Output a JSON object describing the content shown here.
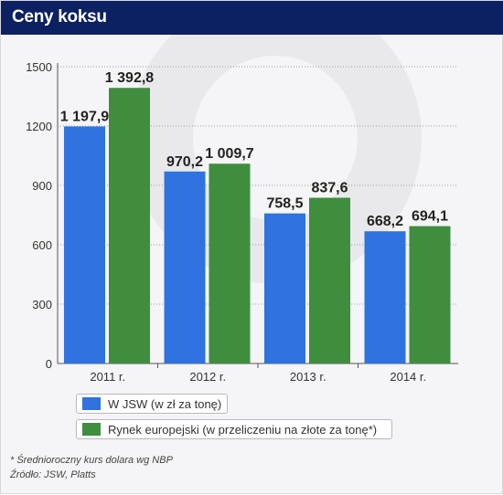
{
  "title": "Ceny koksu",
  "chart_data": {
    "type": "bar",
    "categories": [
      "2011 r.",
      "2012 r.",
      "2013 r.",
      "2014 r."
    ],
    "series": [
      {
        "name": "W JSW (w zł za tonę)",
        "values": [
          1197.9,
          970.2,
          758.5,
          668.2
        ],
        "labels": [
          "1 197,9",
          "970,2",
          "758,5",
          "668,2"
        ],
        "color": "#2f72e0"
      },
      {
        "name": "Rynek europejski (w przeliczeniu na złote za tonę*)",
        "values": [
          1392.8,
          1009.7,
          837.6,
          694.1
        ],
        "labels": [
          "1 392,8",
          "1 009,7",
          "837,6",
          "694,1"
        ],
        "color": "#3e8e3e"
      }
    ],
    "y_ticks": [
      "0",
      "300",
      "600",
      "900",
      "1200",
      "1500"
    ],
    "ylim": [
      0,
      1500
    ],
    "grid": true,
    "legend_position": "bottom"
  },
  "footer": {
    "note": "* Średnioroczny kurs dolara wg NBP",
    "source": "Źródło: JSW, Platts"
  }
}
